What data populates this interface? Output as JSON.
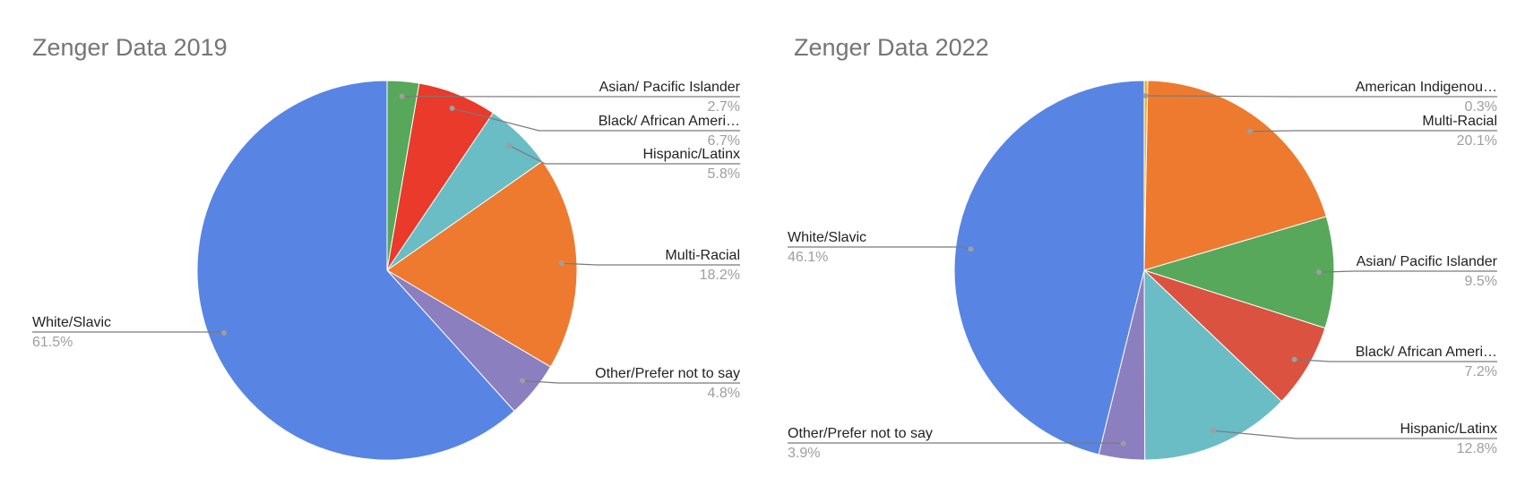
{
  "chart_data": [
    {
      "type": "pie",
      "title": "Zenger Data 2019",
      "labels": [
        "Asian/ Pacific Islander",
        "Black/ African Ameri…",
        "Hispanic/Latinx",
        "Multi-Racial",
        "Other/Prefer not to say",
        "White/Slavic"
      ],
      "values": [
        2.7,
        6.7,
        5.8,
        18.2,
        4.8,
        61.5
      ],
      "value_labels": [
        "2.7%",
        "6.7%",
        "5.8%",
        "18.2%",
        "4.8%",
        "61.5%"
      ],
      "colors": [
        "#57a85a",
        "#e93a2b",
        "#6abcc5",
        "#ee7a30",
        "#8b7fc0",
        "#5885e3"
      ]
    },
    {
      "type": "pie",
      "title": "Zenger Data 2022",
      "labels": [
        "American Indigenou…",
        "Multi-Racial",
        "Asian/ Pacific Islander",
        "Black/ African Ameri…",
        "Hispanic/Latinx",
        "Other/Prefer not to say",
        "White/Slavic"
      ],
      "values": [
        0.3,
        20.1,
        9.5,
        7.2,
        12.8,
        3.9,
        46.1
      ],
      "value_labels": [
        "0.3%",
        "20.1%",
        "9.5%",
        "7.2%",
        "12.8%",
        "3.9%",
        "46.1%"
      ],
      "colors": [
        "#f2b035",
        "#ee7a30",
        "#57a85a",
        "#db5241",
        "#6abcc5",
        "#8b7fc0",
        "#5885e3"
      ]
    }
  ]
}
